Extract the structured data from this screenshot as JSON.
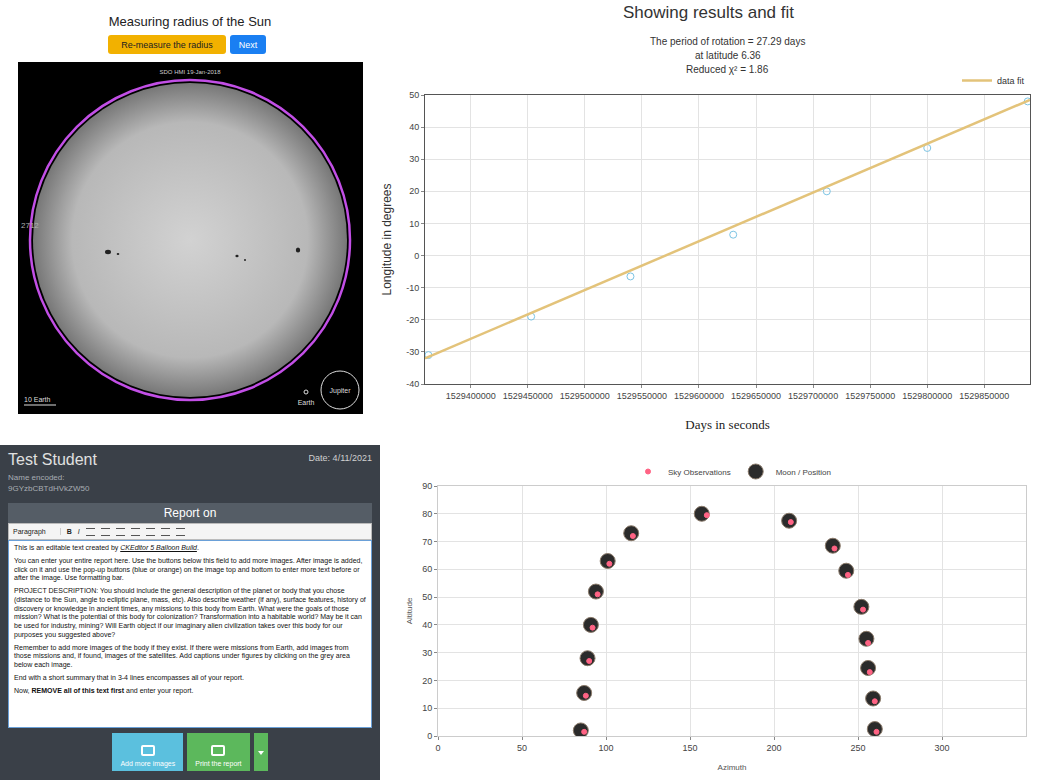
{
  "sun_panel": {
    "title": "Measuring radius of the Sun",
    "buttons": [
      "Re-measure the radius",
      "Next"
    ],
    "image_caption": "SDO HMI 19-Jan-2018",
    "radius_label": "2712",
    "scale_label": "10 Earth",
    "earth_label": "Earth",
    "jupiter_label": "Jupiter"
  },
  "report_panel": {
    "name": "Test Student",
    "date": "Date: 4/11/2021",
    "name_encoded_label": "Name encoded:",
    "name_encoded": "9GYzbCBTdHVkZW50",
    "box_title": "Report on",
    "toolbar": [
      "Paragraph",
      "B",
      "I"
    ],
    "paragraphs": [
      [
        {
          "text": "This is an editable text created by "
        },
        {
          "text": "CKEditor 5 Balloon Build",
          "style": "link"
        },
        {
          "text": "."
        }
      ],
      [
        {
          "text": "You can enter your entire report here. Use the buttons below this field to add more images. After image is added, click on it and use the pop-up buttons (blue or orange) on the image top and bottom to enter more text before or after the image. Use formatting bar."
        }
      ],
      [
        {
          "text": "PROJECT DESCRIPTION: You should include the general description of the planet or body that you chose (distance to the Sun, angle to ecliptic plane, mass, etc). Also describe weather (if any), surface features, history of discovery or knowledge in ancient times, any missions to this body from Earth. What were the goals of those mission? What is the potential of this body for colonization? Transformation into a habitable world? May be it can be used for industry, mining? Will Earth object if our imaginary alien civilization takes over this body for our purposes you suggested above?"
        }
      ],
      [
        {
          "text": "Remember to add more images of the body if they exist. If there were missions from Earth, add images from those missions and, if found, images of the satellites. Add captions under figures by clicking on the grey area below each image."
        }
      ],
      [
        {
          "text": "End with a short summary that in 3-4 lines encompasses all of your report."
        }
      ],
      [
        {
          "text": "Now, "
        },
        {
          "text": "REMOVE all of this text first",
          "style": "bold"
        },
        {
          "text": " and enter your report."
        }
      ]
    ],
    "buttons": [
      "Add more images",
      "Print the report"
    ]
  },
  "chart_data": [
    {
      "type": "scatter",
      "title": "Showing results and fit",
      "subtitle": [
        "The period of rotation = 27.29 days",
        "at latitude 6.36",
        "Reduced χ² = 1.86"
      ],
      "x_label": "Days in seconds",
      "y_label": "Longitude in degrees",
      "series": [
        {
          "type": "scatter",
          "color": "#7cc4e4",
          "marker": "circle-open",
          "x": [
            1529363000,
            1529453000,
            1529540000,
            1529630000,
            1529712000,
            1529800000,
            1529888000
          ],
          "values": [
            -31,
            -19,
            -6.5,
            6.5,
            20,
            33.5,
            48
          ]
        },
        {
          "name": "data fit",
          "type": "line",
          "color": "#e3c37a",
          "x": [
            1529360000,
            1529890000
          ],
          "values": [
            -32,
            48.5
          ]
        }
      ],
      "xlim": [
        1529360000,
        1529890000
      ],
      "xticks": [
        1529400000,
        1529450000,
        1529500000,
        1529550000,
        1529600000,
        1529650000,
        1529700000,
        1529750000,
        1529800000,
        1529850000
      ],
      "ylim": [
        -40,
        50
      ],
      "yticks": [
        -40,
        -30,
        -20,
        -10,
        0,
        10,
        20,
        30,
        40,
        50
      ],
      "grid": true,
      "legend": "top-right"
    },
    {
      "type": "scatter",
      "x_label": "Azimuth",
      "y_label": "Altitude",
      "series": [
        {
          "name": "Sky Observations",
          "color": "#ff6384",
          "marker": "circle",
          "x": [
            87,
            88,
            90,
            92,
            95,
            102,
            116,
            160,
            210,
            236,
            244,
            253,
            256,
            257,
            260,
            261
          ],
          "values": [
            1.5,
            14.5,
            27,
            39,
            51,
            62,
            72,
            79.5,
            77,
            67.5,
            58,
            45.5,
            33.5,
            23,
            12.5,
            1.5
          ]
        },
        {
          "name": "Moon / Position",
          "color": "#2b2b2b",
          "marker": "circle",
          "x": [
            85,
            87,
            89,
            91,
            94,
            101,
            115,
            157,
            209,
            235,
            243,
            252,
            255,
            256,
            259,
            260
          ],
          "values": [
            2,
            15.5,
            28,
            40,
            52,
            63,
            73,
            80,
            77.5,
            68.5,
            59.5,
            46.5,
            35,
            24.5,
            13.5,
            2.5
          ]
        }
      ],
      "xlim": [
        0,
        350
      ],
      "xticks": [
        0,
        50,
        100,
        150,
        200,
        250,
        300
      ],
      "ylim": [
        0,
        90
      ],
      "yticks": [
        0,
        10,
        20,
        30,
        40,
        50,
        60,
        70,
        80,
        90
      ],
      "grid": true,
      "legend": "top"
    }
  ]
}
